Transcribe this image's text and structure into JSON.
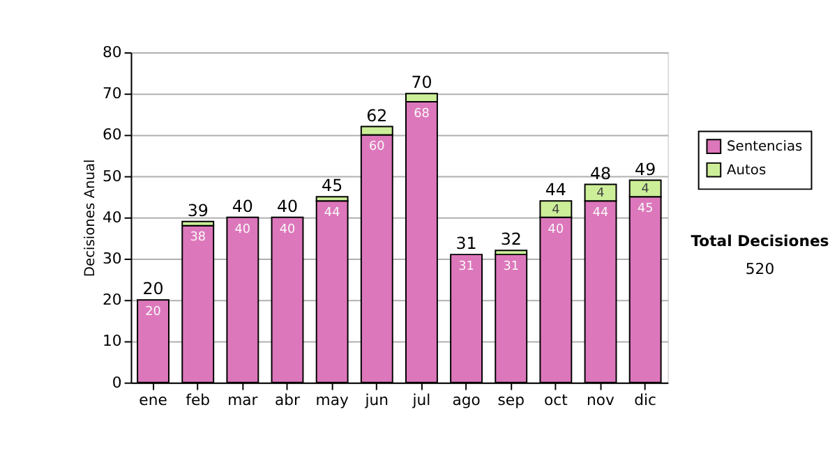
{
  "chart_data": {
    "type": "bar",
    "stacked": true,
    "ylabel": "Decisiones Anual",
    "categories": [
      "ene",
      "feb",
      "mar",
      "abr",
      "may",
      "jun",
      "jul",
      "ago",
      "sep",
      "oct",
      "nov",
      "dic"
    ],
    "series": [
      {
        "name": "Sentencias",
        "color": "#dd77bb",
        "values": [
          20,
          38,
          40,
          40,
          44,
          60,
          68,
          31,
          31,
          40,
          44,
          45
        ],
        "value_labels": [
          "20",
          "38",
          "40",
          "40",
          "44",
          "60",
          "68",
          "31",
          "31",
          "40",
          "44",
          "45"
        ]
      },
      {
        "name": "Autos",
        "color": "#ccee99",
        "values": [
          null,
          1,
          null,
          null,
          1,
          2,
          2,
          null,
          1,
          4,
          4,
          4
        ],
        "value_labels": [
          null,
          null,
          null,
          null,
          null,
          null,
          null,
          null,
          null,
          "4",
          "4",
          "4"
        ]
      }
    ],
    "totals": [
      "20",
      "39",
      "40",
      "40",
      "45",
      "62",
      "70",
      "31",
      "32",
      "44",
      "48",
      "49"
    ],
    "ylim": [
      0,
      80
    ],
    "yticks": [
      0,
      10,
      20,
      30,
      40,
      50,
      60,
      70,
      80
    ],
    "grid": "y",
    "legend": "right",
    "annotations": [
      "Total Decisiones",
      "520"
    ]
  }
}
